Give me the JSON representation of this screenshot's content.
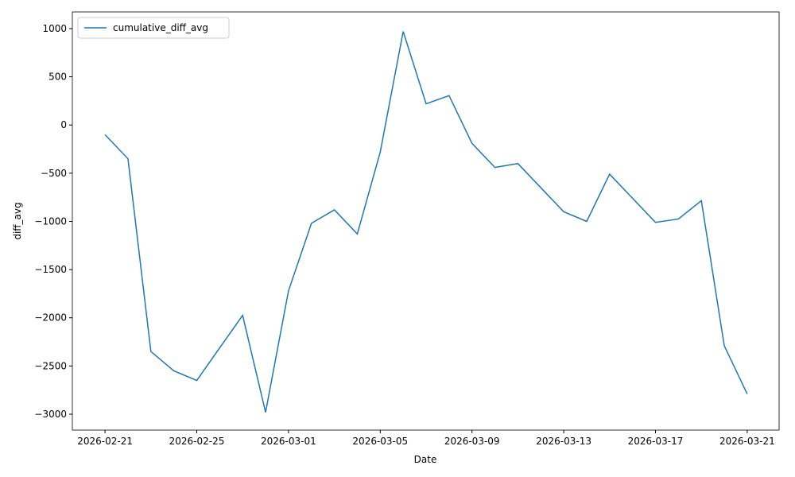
{
  "chart_data": {
    "type": "line",
    "x_label": "Date",
    "y_label": "diff_avg",
    "x": [
      "2026-02-21",
      "2026-02-22",
      "2026-02-23",
      "2026-02-24",
      "2026-02-25",
      "2026-02-26",
      "2026-02-27",
      "2026-02-28",
      "2026-03-01",
      "2026-03-02",
      "2026-03-03",
      "2026-03-04",
      "2026-03-05",
      "2026-03-06",
      "2026-03-07",
      "2026-03-08",
      "2026-03-09",
      "2026-03-10",
      "2026-03-11",
      "2026-03-12",
      "2026-03-13",
      "2026-03-14",
      "2026-03-15",
      "2026-03-16",
      "2026-03-17",
      "2026-03-18",
      "2026-03-19",
      "2026-03-20",
      "2026-03-21"
    ],
    "series": [
      {
        "name": "cumulative_diff_avg",
        "color": "#1f77b4",
        "values": [
          -100,
          -350,
          -2350,
          -2550,
          -2650,
          -2312,
          -1975,
          -2980,
          -1720,
          -1020,
          -880,
          -1130,
          -280,
          970,
          220,
          305,
          -190,
          -440,
          -400,
          -650,
          -900,
          -1000,
          -510,
          -760,
          -1010,
          -975,
          -785,
          -2290,
          -2790
        ]
      }
    ],
    "xlim": [
      "2026-02-19T13:48",
      "2026-03-22T09:22"
    ],
    "xticks": [
      "2026-02-21",
      "2026-02-25",
      "2026-03-01",
      "2026-03-05",
      "2026-03-09",
      "2026-03-13",
      "2026-03-17",
      "2026-03-21"
    ],
    "ylim": [
      -3165,
      1173
    ],
    "yticks": [
      {
        "value": -3000,
        "label": "−3000"
      },
      {
        "value": -2500,
        "label": "−2500"
      },
      {
        "value": -2000,
        "label": "−2000"
      },
      {
        "value": -1500,
        "label": "−1500"
      },
      {
        "value": -1000,
        "label": "−1000"
      },
      {
        "value": -500,
        "label": "−500"
      },
      0,
      500,
      1000
    ],
    "grid": false,
    "legend": "upper left"
  }
}
